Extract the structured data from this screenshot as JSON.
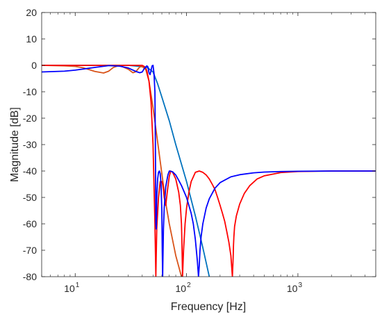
{
  "chart_data": {
    "type": "line",
    "title": "",
    "xlabel": "Frequency [Hz]",
    "ylabel": "Magnitude [dB]",
    "xscale": "log",
    "xlim": [
      5,
      5000
    ],
    "ylim": [
      -80,
      20
    ],
    "grid": false,
    "legend": "none",
    "x_ticks": [
      {
        "value": 10,
        "base": "10",
        "exp": "1"
      },
      {
        "value": 100,
        "base": "10",
        "exp": "2"
      },
      {
        "value": 1000,
        "base": "10",
        "exp": "3"
      }
    ],
    "y_ticks": [
      20,
      10,
      0,
      -10,
      -20,
      -30,
      -40,
      -50,
      -60,
      -70,
      -80
    ],
    "y_tick_labels": [
      "20",
      "10",
      "0",
      "-10",
      "-20",
      "-30",
      "-40",
      "-50",
      "-60",
      "-70",
      "-80"
    ],
    "series": [
      {
        "color": "#0072bd",
        "x": [
          5,
          10,
          20,
          30,
          40,
          45,
          50,
          55,
          60,
          70,
          80,
          100,
          120,
          140,
          160
        ],
        "y": [
          0,
          0,
          0,
          0,
          -0.5,
          -1,
          -2.5,
          -7,
          -12,
          -21,
          -30,
          -44,
          -57,
          -69,
          -80
        ]
      },
      {
        "color": "#d95319",
        "x": [
          5,
          8,
          10,
          12,
          15,
          18,
          20,
          22,
          25,
          30,
          33,
          35,
          38,
          40,
          43,
          46,
          50,
          55,
          60,
          65,
          70,
          80,
          90
        ],
        "y": [
          0,
          -0.2,
          -0.4,
          -1,
          -2.3,
          -2.9,
          -2.2,
          -0.8,
          0,
          -1.5,
          -2.8,
          -2.4,
          -0.6,
          -0.5,
          -1.5,
          -6,
          -16,
          -29,
          -41,
          -52,
          -60,
          -72,
          -80
        ]
      },
      {
        "color": "#ff0000",
        "x": [
          5,
          20,
          40,
          42,
          44,
          46,
          48,
          50,
          52,
          53,
          54,
          56,
          58,
          60,
          61,
          62,
          63,
          65,
          68,
          70,
          72,
          75,
          80,
          85,
          88,
          90,
          91,
          92,
          94,
          97,
          100,
          105,
          110,
          120,
          130,
          140,
          150,
          160,
          170,
          180,
          190,
          200,
          210,
          220,
          230,
          240,
          250,
          258,
          262,
          264,
          266,
          270,
          280,
          300,
          330,
          370,
          430,
          500,
          700,
          1000,
          2000,
          5000
        ],
        "y": [
          0,
          0,
          0,
          -0.5,
          -2,
          -6,
          -14,
          -30,
          -60,
          -80,
          -62,
          -50,
          -44,
          -44,
          -45,
          -47,
          -50,
          -53,
          -46,
          -42,
          -40,
          -40.5,
          -43,
          -48,
          -53,
          -60,
          -68,
          -80,
          -70,
          -60,
          -54,
          -48,
          -44,
          -40.5,
          -40,
          -40.5,
          -41.5,
          -43,
          -45,
          -47,
          -50,
          -53,
          -56,
          -59,
          -63,
          -67,
          -72,
          -80,
          -73,
          -68,
          -65,
          -61,
          -57,
          -52.5,
          -48.5,
          -45.5,
          -43,
          -41.8,
          -40.6,
          -40.2,
          -40,
          -40
        ]
      },
      {
        "color": "#0000ff",
        "x": [
          5,
          8,
          10,
          15,
          20,
          25,
          30,
          35,
          38,
          40,
          42,
          44,
          45,
          46,
          47,
          48,
          49,
          50,
          51,
          52,
          52.5,
          53,
          53.5,
          54,
          55,
          56,
          57,
          58,
          59,
          60,
          60.5,
          61,
          62,
          63,
          65,
          68,
          70,
          75,
          80,
          85,
          90,
          100,
          110,
          115,
          120,
          125,
          128,
          130,
          132,
          135,
          140,
          150,
          160,
          180,
          200,
          250,
          300,
          400,
          500,
          700,
          1000,
          2000,
          5000
        ],
        "y": [
          -2.5,
          -2.2,
          -1.8,
          -0.8,
          -0.1,
          -0.3,
          -1.0,
          -2.3,
          -2.8,
          -2.5,
          -1.0,
          -0.2,
          -0.6,
          -2.8,
          -3.5,
          -2.0,
          -0.2,
          0,
          -3,
          -10,
          -30,
          -60,
          -62,
          -50,
          -43,
          -40.5,
          -40,
          -41,
          -45,
          -55,
          -70,
          -80,
          -62,
          -54,
          -46,
          -41.5,
          -40,
          -40.3,
          -41.5,
          -43.5,
          -45.5,
          -50,
          -56,
          -60,
          -66,
          -74,
          -80,
          -76,
          -70,
          -65,
          -60,
          -54,
          -50.5,
          -46.5,
          -44.4,
          -42.2,
          -41.4,
          -40.7,
          -40.4,
          -40.2,
          -40.1,
          -40,
          -40
        ]
      }
    ]
  }
}
